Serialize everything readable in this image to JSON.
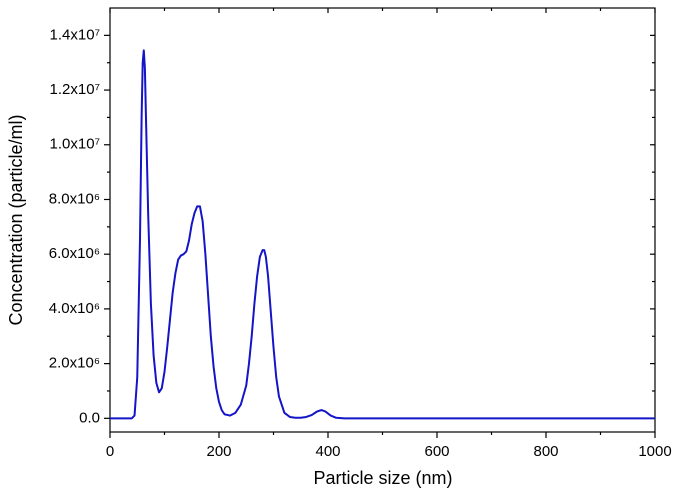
{
  "chart_data": {
    "type": "line",
    "xlabel": "Particle size (nm)",
    "ylabel": "Concentration (particle/ml)",
    "x": [
      0,
      40,
      45,
      50,
      55,
      58,
      60,
      62,
      64,
      66,
      70,
      75,
      80,
      85,
      90,
      95,
      100,
      105,
      110,
      115,
      120,
      125,
      130,
      135,
      140,
      145,
      150,
      155,
      160,
      165,
      170,
      175,
      180,
      185,
      190,
      195,
      200,
      205,
      210,
      220,
      230,
      240,
      250,
      255,
      260,
      265,
      270,
      275,
      280,
      283,
      286,
      290,
      295,
      300,
      305,
      310,
      320,
      330,
      340,
      350,
      360,
      370,
      380,
      388,
      395,
      405,
      415,
      430,
      1000
    ],
    "series": [
      {
        "color": "#1414c8",
        "values": [
          0,
          0,
          100000,
          1500000,
          6500000,
          11000000,
          13000000,
          13450000,
          12800000,
          11000000,
          7500000,
          4200000,
          2300000,
          1300000,
          950000,
          1100000,
          1700000,
          2600000,
          3600000,
          4600000,
          5300000,
          5800000,
          5950000,
          6000000,
          6100000,
          6500000,
          7100000,
          7500000,
          7750000,
          7750000,
          7200000,
          6000000,
          4500000,
          3000000,
          1900000,
          1100000,
          600000,
          300000,
          150000,
          100000,
          200000,
          500000,
          1200000,
          2000000,
          3000000,
          4200000,
          5200000,
          5900000,
          6150000,
          6150000,
          5900000,
          5200000,
          3900000,
          2600000,
          1500000,
          800000,
          200000,
          50000,
          20000,
          20000,
          50000,
          120000,
          250000,
          300000,
          250000,
          100000,
          20000,
          0,
          0
        ]
      }
    ],
    "xlim": [
      0,
      1000
    ],
    "xticks": [
      0,
      200,
      400,
      600,
      800,
      1000
    ],
    "ylim": [
      -500000,
      15000000
    ],
    "yticks": [
      {
        "value": 0,
        "label": "0.0"
      },
      {
        "value": 2000000,
        "label": "2.0x10⁶"
      },
      {
        "value": 4000000,
        "label": "4.0x10⁶"
      },
      {
        "value": 6000000,
        "label": "6.0x10⁶"
      },
      {
        "value": 8000000,
        "label": "8.0x10⁶"
      },
      {
        "value": 10000000,
        "label": "1.0x10⁷"
      },
      {
        "value": 12000000,
        "label": "1.2x10⁷"
      },
      {
        "value": 14000000,
        "label": "1.4x10⁷"
      }
    ]
  }
}
